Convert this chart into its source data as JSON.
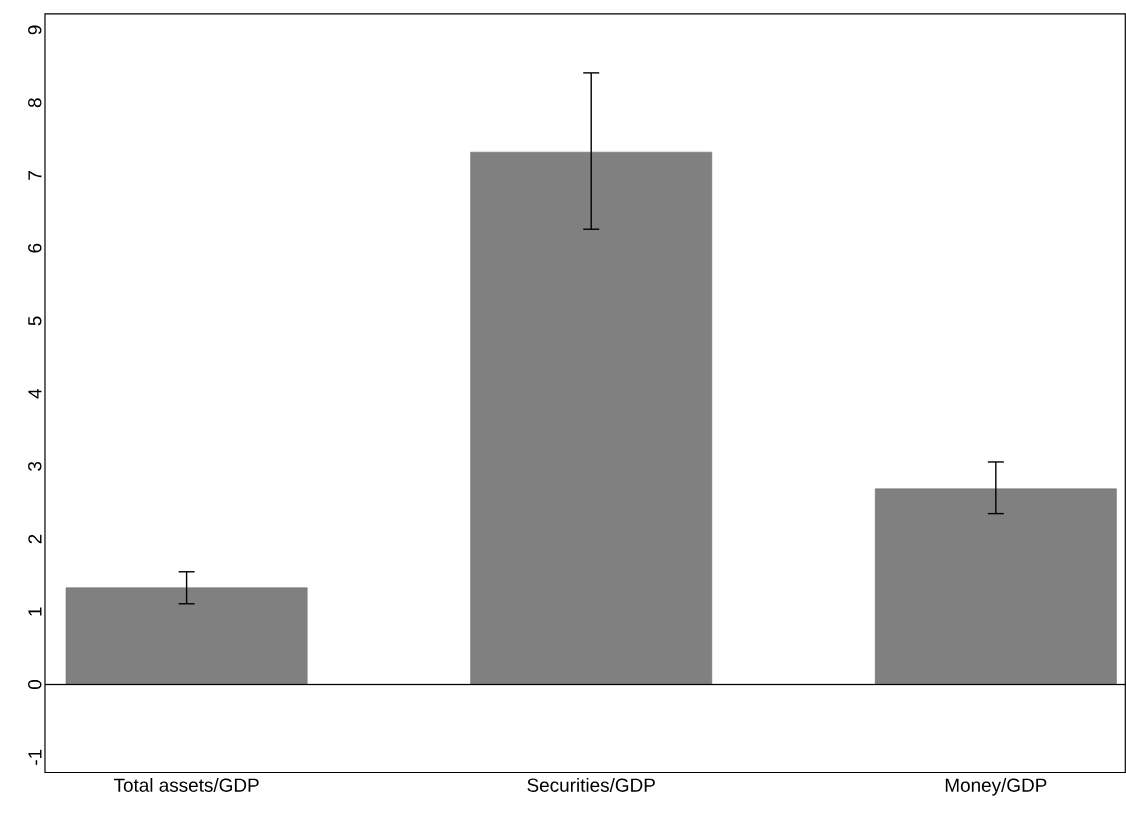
{
  "chart_data": {
    "type": "bar",
    "categories": [
      "Total assets/GDP",
      "Securities/GDP",
      "Money/GDP"
    ],
    "values": [
      1.33,
      7.32,
      2.69
    ],
    "errors": [
      [
        1.11,
        1.55
      ],
      [
        6.26,
        8.41
      ],
      [
        2.35,
        3.06
      ]
    ],
    "color": "#808080",
    "ylim": [
      -1.21,
      9.22
    ],
    "yticks": [
      -1,
      0,
      1,
      2,
      3,
      4,
      5,
      6,
      7,
      8,
      9
    ],
    "ref_lines": [
      {
        "axis": "y",
        "value": 0,
        "color": "#000000"
      }
    ],
    "grid": false
  }
}
